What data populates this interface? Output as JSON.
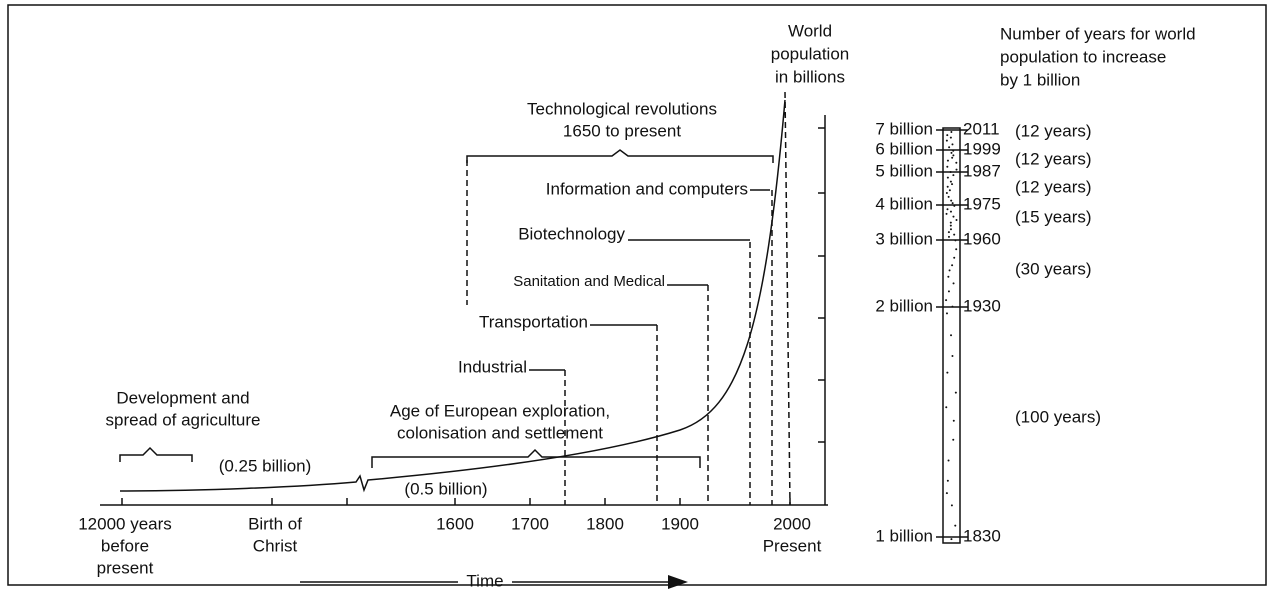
{
  "left": {
    "y_axis_label": [
      "World",
      "population",
      "in billions"
    ],
    "x_labels": [
      {
        "lines": [
          "12000 years",
          "before",
          "present"
        ]
      },
      {
        "lines": [
          "Birth of",
          "Christ"
        ]
      },
      {
        "lines": [
          "1600"
        ]
      },
      {
        "lines": [
          "1700"
        ]
      },
      {
        "lines": [
          "1800"
        ]
      },
      {
        "lines": [
          "1900"
        ]
      },
      {
        "lines": [
          "2000",
          "Present"
        ]
      }
    ],
    "time_label": "Time",
    "agriculture": [
      "Development and",
      "spread of agriculture"
    ],
    "pop_quarter": "(0.25 billion)",
    "pop_half": "(0.5 billion)",
    "exploration": [
      "Age of European exploration,",
      "colonisation and settlement"
    ],
    "technology": [
      "Technological revolutions",
      "1650 to present"
    ],
    "revolutions": [
      "Information and computers",
      "Biotechnology",
      "Sanitation and Medical",
      "Transportation",
      "Industrial"
    ]
  },
  "right": {
    "title": [
      "Number of years for world",
      "population to increase",
      "by 1 billion"
    ],
    "milestones": [
      {
        "population": "7 billion",
        "year": "2011"
      },
      {
        "population": "6 billion",
        "year": "1999"
      },
      {
        "population": "5 billion",
        "year": "1987"
      },
      {
        "population": "4 billion",
        "year": "1975"
      },
      {
        "population": "3 billion",
        "year": "1960"
      },
      {
        "population": "2 billion",
        "year": "1930"
      },
      {
        "population": "1 billion",
        "year": "1830"
      }
    ],
    "intervals": [
      "(12 years)",
      "(12 years)",
      "(12 years)",
      "(15 years)",
      "(30 years)",
      "(100 years)"
    ]
  }
}
